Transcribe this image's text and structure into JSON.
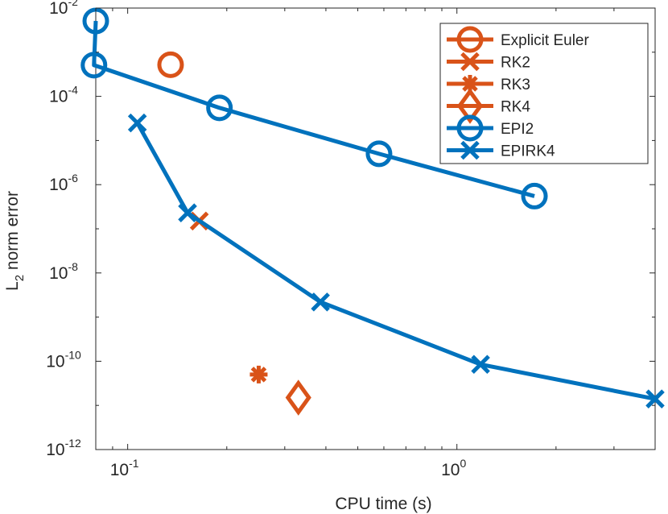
{
  "chart_data": {
    "type": "line",
    "xscale": "log",
    "yscale": "log",
    "xlabel": "CPU time (s)",
    "ylabel": {
      "main": "L",
      "subscript": "2",
      "rest": " norm error"
    },
    "xlim": [
      0.08,
      4.0
    ],
    "ylim": [
      1e-12,
      0.01
    ],
    "grid": false,
    "legend_position": "top-right",
    "colors": {
      "orange": "#D95319",
      "blue": "#0072BD",
      "axis": "#262626"
    },
    "x_ticks": [
      {
        "value": 0.1,
        "base": "10",
        "exp": "-1"
      },
      {
        "value": 1,
        "base": "10",
        "exp": "0"
      }
    ],
    "y_ticks": [
      {
        "value": 0.01,
        "base": "10",
        "exp": "-2"
      },
      {
        "value": 0.0001,
        "base": "10",
        "exp": "-4"
      },
      {
        "value": 1e-06,
        "base": "10",
        "exp": "-6"
      },
      {
        "value": 1e-08,
        "base": "10",
        "exp": "-8"
      },
      {
        "value": 1e-10,
        "base": "10",
        "exp": "-10"
      },
      {
        "value": 1e-12,
        "base": "10",
        "exp": "-12"
      }
    ],
    "series": [
      {
        "name": "Explicit Euler",
        "color": "#D95319",
        "marker": "circle",
        "points": [
          [
            0.135,
            0.00052
          ]
        ]
      },
      {
        "name": "RK2",
        "color": "#D95319",
        "marker": "x",
        "points": [
          [
            0.165,
            1.5e-07
          ]
        ]
      },
      {
        "name": "RK3",
        "color": "#D95319",
        "marker": "asterisk",
        "points": [
          [
            0.25,
            5e-11
          ]
        ]
      },
      {
        "name": "RK4",
        "color": "#D95319",
        "marker": "diamond",
        "points": [
          [
            0.33,
            1.5e-11
          ]
        ]
      },
      {
        "name": "EPI2",
        "color": "#0072BD",
        "marker": "circle",
        "points": [
          [
            0.08,
            0.0051
          ],
          [
            0.079,
            0.00051
          ],
          [
            0.19,
            5.5e-05
          ],
          [
            0.58,
            5e-06
          ],
          [
            1.72,
            5.5e-07
          ]
        ]
      },
      {
        "name": "EPIRK4",
        "color": "#0072BD",
        "marker": "x",
        "points": [
          [
            0.107,
            2.5e-05
          ],
          [
            0.152,
            2.3e-07
          ],
          [
            0.385,
            2.2e-09
          ],
          [
            1.18,
            8.5e-11
          ],
          [
            4.0,
            1.4e-11
          ]
        ]
      }
    ]
  }
}
